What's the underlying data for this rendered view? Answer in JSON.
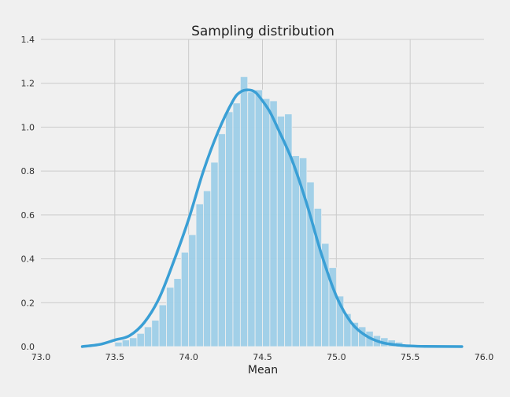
{
  "chart_data": {
    "type": "bar",
    "title": "Sampling distribution",
    "xlabel": "Mean",
    "ylabel": "",
    "xlim": [
      73.0,
      76.0
    ],
    "ylim": [
      0.0,
      1.4
    ],
    "x_ticks": [
      "73.0",
      "73.5",
      "74.0",
      "74.5",
      "75.0",
      "75.5",
      "76.0"
    ],
    "y_ticks": [
      "0.0",
      "0.2",
      "0.4",
      "0.6",
      "0.8",
      "1.0",
      "1.2",
      "1.4"
    ],
    "grid": true,
    "colors": {
      "bars": "#9ecfe8",
      "kde": "#3a9fd5",
      "background": "#f0f0f0",
      "grid": "#cbcbcb"
    },
    "bins": [
      {
        "left": 73.5,
        "right": 73.55,
        "height": 0.02
      },
      {
        "left": 73.55,
        "right": 73.6,
        "height": 0.03
      },
      {
        "left": 73.6,
        "right": 73.65,
        "height": 0.04
      },
      {
        "left": 73.65,
        "right": 73.7,
        "height": 0.06
      },
      {
        "left": 73.7,
        "right": 73.75,
        "height": 0.09
      },
      {
        "left": 73.75,
        "right": 73.8,
        "height": 0.12
      },
      {
        "left": 73.8,
        "right": 73.85,
        "height": 0.19
      },
      {
        "left": 73.85,
        "right": 73.9,
        "height": 0.27
      },
      {
        "left": 73.9,
        "right": 73.95,
        "height": 0.31
      },
      {
        "left": 73.95,
        "right": 74.0,
        "height": 0.43
      },
      {
        "left": 74.0,
        "right": 74.05,
        "height": 0.51
      },
      {
        "left": 74.05,
        "right": 74.1,
        "height": 0.65
      },
      {
        "left": 74.1,
        "right": 74.15,
        "height": 0.71
      },
      {
        "left": 74.15,
        "right": 74.2,
        "height": 0.84
      },
      {
        "left": 74.2,
        "right": 74.25,
        "height": 0.97
      },
      {
        "left": 74.25,
        "right": 74.3,
        "height": 1.07
      },
      {
        "left": 74.3,
        "right": 74.35,
        "height": 1.11
      },
      {
        "left": 74.35,
        "right": 74.4,
        "height": 1.23
      },
      {
        "left": 74.4,
        "right": 74.45,
        "height": 1.16
      },
      {
        "left": 74.45,
        "right": 74.5,
        "height": 1.17
      },
      {
        "left": 74.5,
        "right": 74.55,
        "height": 1.13
      },
      {
        "left": 74.55,
        "right": 74.6,
        "height": 1.12
      },
      {
        "left": 74.6,
        "right": 74.65,
        "height": 1.05
      },
      {
        "left": 74.65,
        "right": 74.7,
        "height": 1.06
      },
      {
        "left": 74.7,
        "right": 74.75,
        "height": 0.87
      },
      {
        "left": 74.75,
        "right": 74.8,
        "height": 0.86
      },
      {
        "left": 74.8,
        "right": 74.85,
        "height": 0.75
      },
      {
        "left": 74.85,
        "right": 74.9,
        "height": 0.63
      },
      {
        "left": 74.9,
        "right": 74.95,
        "height": 0.47
      },
      {
        "left": 74.95,
        "right": 75.0,
        "height": 0.36
      },
      {
        "left": 75.0,
        "right": 75.05,
        "height": 0.23
      },
      {
        "left": 75.05,
        "right": 75.1,
        "height": 0.15
      },
      {
        "left": 75.1,
        "right": 75.15,
        "height": 0.11
      },
      {
        "left": 75.15,
        "right": 75.2,
        "height": 0.09
      },
      {
        "left": 75.2,
        "right": 75.25,
        "height": 0.07
      },
      {
        "left": 75.25,
        "right": 75.3,
        "height": 0.05
      },
      {
        "left": 75.3,
        "right": 75.35,
        "height": 0.04
      },
      {
        "left": 75.35,
        "right": 75.4,
        "height": 0.03
      },
      {
        "left": 75.4,
        "right": 75.45,
        "height": 0.02
      }
    ],
    "kde": {
      "x": [
        73.28,
        73.4,
        73.5,
        73.6,
        73.7,
        73.8,
        73.9,
        74.0,
        74.1,
        74.2,
        74.3,
        74.35,
        74.4,
        74.45,
        74.5,
        74.55,
        74.6,
        74.7,
        74.8,
        74.9,
        75.0,
        75.1,
        75.2,
        75.3,
        75.4,
        75.5,
        75.6,
        75.85
      ],
      "y": [
        0.0,
        0.01,
        0.03,
        0.05,
        0.11,
        0.22,
        0.39,
        0.58,
        0.8,
        0.98,
        1.12,
        1.16,
        1.17,
        1.16,
        1.12,
        1.07,
        1.0,
        0.85,
        0.65,
        0.42,
        0.23,
        0.11,
        0.05,
        0.02,
        0.008,
        0.003,
        0.001,
        0.0
      ]
    }
  }
}
